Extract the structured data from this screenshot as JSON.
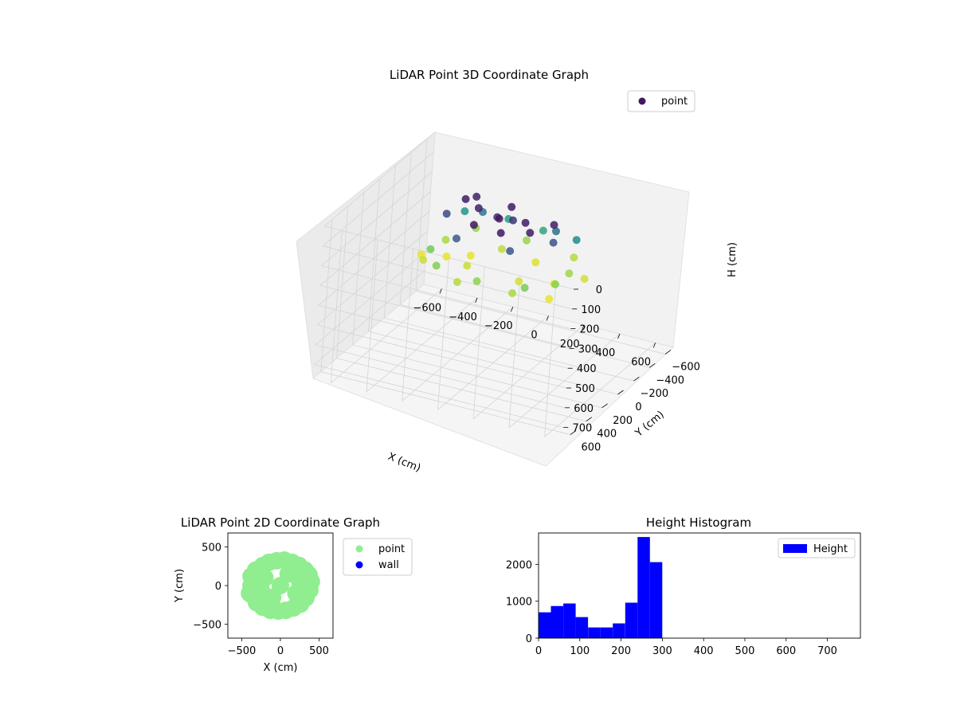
{
  "chart_data": [
    {
      "type": "scatter",
      "title": "LiDAR Point 3D Coordinate Graph",
      "xlabel": "X (cm)",
      "ylabel": "Y (cm)",
      "zlabel": "H (cm)",
      "xlim": [
        -700,
        700
      ],
      "ylim": [
        -700,
        700
      ],
      "zlim": [
        0,
        770
      ],
      "z_inverted": true,
      "xticks": [
        "−600",
        "−400",
        "−200",
        "0",
        "200",
        "400",
        "600"
      ],
      "yticks": [
        "−600",
        "−400",
        "−200",
        "0",
        "200",
        "400",
        "600"
      ],
      "zticks": [
        "0",
        "100",
        "200",
        "300",
        "400",
        "500",
        "600",
        "700"
      ],
      "legend": [
        "point"
      ],
      "legend_position": "top-right",
      "grid": true,
      "colormap": "viridis",
      "series": [
        {
          "name": "point",
          "points": [
            [
              -250,
              -80,
              25
            ],
            [
              -150,
              -20,
              28
            ],
            [
              0,
              60,
              20
            ],
            [
              130,
              20,
              25
            ],
            [
              260,
              -50,
              30
            ],
            [
              -220,
              -150,
              30
            ],
            [
              -80,
              200,
              22
            ],
            [
              80,
              220,
              20
            ],
            [
              200,
              120,
              26
            ],
            [
              -10,
              -120,
              24
            ],
            [
              -40,
              -10,
              45
            ],
            [
              40,
              -30,
              50
            ],
            [
              -300,
              40,
              70
            ],
            [
              300,
              40,
              80
            ],
            [
              -150,
              250,
              90
            ],
            [
              150,
              250,
              85
            ],
            [
              -200,
              -200,
              120
            ],
            [
              220,
              -180,
              115
            ],
            [
              -320,
              -250,
              160
            ],
            [
              -100,
              -310,
              170
            ],
            [
              100,
              -300,
              180
            ],
            [
              320,
              -220,
              150
            ],
            [
              -350,
              100,
              240
            ],
            [
              -250,
              250,
              250
            ],
            [
              0,
              300,
              255
            ],
            [
              250,
              260,
              245
            ],
            [
              360,
              120,
              250
            ],
            [
              350,
              -80,
              265
            ],
            [
              -360,
              -120,
              270
            ],
            [
              -280,
              -320,
              260
            ],
            [
              0,
              -330,
              262
            ],
            [
              280,
              -300,
              275
            ],
            [
              -150,
              80,
              285
            ],
            [
              150,
              100,
              290
            ],
            [
              -80,
              -200,
              280
            ],
            [
              120,
              -180,
              295
            ],
            [
              -300,
              0,
              300
            ],
            [
              300,
              -10,
              305
            ],
            [
              -200,
              -80,
              300
            ],
            [
              420,
              -120,
              290
            ],
            [
              -420,
              50,
              300
            ],
            [
              -370,
              140,
              285
            ],
            [
              200,
              300,
              270
            ],
            [
              -100,
              320,
              275
            ],
            [
              360,
              190,
              300
            ]
          ],
          "heights": [
            25,
            28,
            20,
            25,
            30,
            30,
            22,
            20,
            26,
            24,
            45,
            50,
            70,
            80,
            90,
            85,
            120,
            115,
            160,
            170,
            180,
            150,
            240,
            250,
            255,
            245,
            250,
            265,
            270,
            260,
            262,
            275,
            285,
            290,
            280,
            295,
            300,
            305,
            300,
            290,
            300,
            285,
            270,
            275,
            300
          ]
        }
      ]
    },
    {
      "type": "scatter",
      "title": "LiDAR Point 2D Coordinate Graph",
      "xlabel": "X (cm)",
      "ylabel": "Y (cm)",
      "xlim": [
        -680,
        680
      ],
      "ylim": [
        -680,
        680
      ],
      "xticks": [
        "−500",
        "0",
        "500"
      ],
      "yticks": [
        "−500",
        "0",
        "500"
      ],
      "legend": [
        "point",
        "wall"
      ],
      "legend_position": "outside-right",
      "series": [
        {
          "name": "point",
          "color": "#90ee90",
          "points": [
            [
              -380,
              0
            ],
            [
              -400,
              -100
            ],
            [
              -380,
              120
            ],
            [
              -320,
              200
            ],
            [
              -230,
              260
            ],
            [
              -150,
              300
            ],
            [
              -50,
              320
            ],
            [
              50,
              330
            ],
            [
              150,
              300
            ],
            [
              240,
              260
            ],
            [
              320,
              200
            ],
            [
              370,
              140
            ],
            [
              400,
              50
            ],
            [
              380,
              -60
            ],
            [
              330,
              -160
            ],
            [
              260,
              -240
            ],
            [
              170,
              -290
            ],
            [
              70,
              -320
            ],
            [
              -30,
              -330
            ],
            [
              -130,
              -320
            ],
            [
              -230,
              -280
            ],
            [
              -310,
              -220
            ],
            [
              -360,
              -130
            ],
            [
              0,
              0
            ],
            [
              -200,
              100
            ],
            [
              200,
              -100
            ],
            [
              100,
              150
            ],
            [
              -100,
              -150
            ],
            [
              250,
              50
            ],
            [
              -250,
              -50
            ]
          ]
        },
        {
          "name": "wall",
          "color": "#0000ff",
          "points": []
        }
      ]
    },
    {
      "type": "bar",
      "title": "Height Histogram",
      "legend": [
        "Height"
      ],
      "legend_position": "top-right",
      "color": "#0000ff",
      "xlim": [
        0,
        780
      ],
      "ylim": [
        0,
        2850
      ],
      "xticks": [
        "0",
        "100",
        "200",
        "300",
        "400",
        "500",
        "600",
        "700"
      ],
      "yticks": [
        "0",
        "1000",
        "2000"
      ],
      "series": [
        {
          "name": "Height",
          "bin_edges": [
            0,
            30,
            60,
            90,
            120,
            150,
            180,
            210,
            240,
            270,
            300
          ],
          "values": [
            700,
            870,
            940,
            570,
            290,
            290,
            400,
            960,
            2740,
            2060
          ]
        }
      ]
    }
  ]
}
